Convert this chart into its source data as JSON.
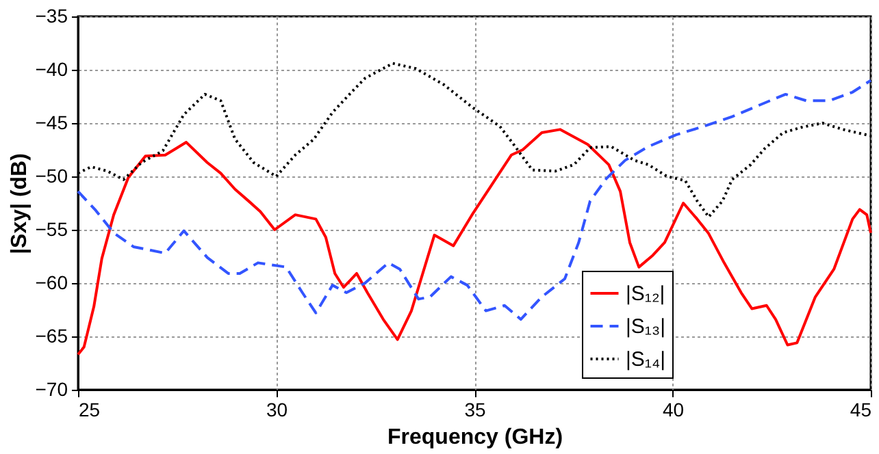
{
  "chart_data": {
    "type": "line",
    "xlabel": "Frequency (GHz)",
    "ylabel": "|Sxy| (dB)",
    "xlim": [
      25,
      45
    ],
    "ylim": [
      -70,
      -35
    ],
    "xticks": [
      25,
      30,
      35,
      40,
      45
    ],
    "yticks": [
      -70,
      -65,
      -60,
      -55,
      -50,
      -45,
      -40,
      -35
    ],
    "grid": true,
    "legend": "bottom right",
    "marker": "none",
    "series": [
      {
        "name": "|S₁₂|",
        "color": "#ff0000",
        "line_style": "solid",
        "x": [
          25,
          25.15,
          25.4,
          25.6,
          25.9,
          26.27,
          26.7,
          27.2,
          27.73,
          28.26,
          28.6,
          28.96,
          29.3,
          29.6,
          29.96,
          30.48,
          31.0,
          31.25,
          31.48,
          31.7,
          32.03,
          32.3,
          32.7,
          33.06,
          33.41,
          33.99,
          34.47,
          34.94,
          35.4,
          35.93,
          36.22,
          36.7,
          37.16,
          37.86,
          38.39,
          38.68,
          38.92,
          39.15,
          39.5,
          39.8,
          40.27,
          40.62,
          40.9,
          41.3,
          41.73,
          42.0,
          42.37,
          42.6,
          42.9,
          43.14,
          43.6,
          44.07,
          44.54,
          44.72,
          44.9,
          45
        ],
        "values": [
          -66.7,
          -66,
          -62.2,
          -57.7,
          -53.6,
          -50.1,
          -48.1,
          -48,
          -46.8,
          -48.7,
          -49.7,
          -51.2,
          -52.3,
          -53.3,
          -55,
          -53.6,
          -54,
          -55.7,
          -59.1,
          -60.4,
          -59.1,
          -60.9,
          -63.4,
          -65.3,
          -62.6,
          -55.5,
          -56.5,
          -53.6,
          -51,
          -48,
          -47.5,
          -45.9,
          -45.6,
          -47,
          -48.9,
          -51.4,
          -56.2,
          -58.5,
          -57.4,
          -56.2,
          -52.5,
          -54,
          -55.3,
          -58.1,
          -60.9,
          -62.4,
          -62.1,
          -63.4,
          -65.8,
          -65.6,
          -61.3,
          -58.7,
          -54,
          -53.1,
          -53.6,
          -55.3
        ]
      },
      {
        "name": "|S₁₃|",
        "color": "#3355ff",
        "line_style": "dashed",
        "x": [
          25,
          25.45,
          25.9,
          26.4,
          27.2,
          27.67,
          28.26,
          28.79,
          29.08,
          29.54,
          30.25,
          30.66,
          31.0,
          31.42,
          31.77,
          32.24,
          32.83,
          33.12,
          33.59,
          33.88,
          34.41,
          34.82,
          35.29,
          35.76,
          36.17,
          36.7,
          37.28,
          37.63,
          37.92,
          38.33,
          38.8,
          39.39,
          40.09,
          40.79,
          41.5,
          42.2,
          42.85,
          43.37,
          43.96,
          44.54,
          45
        ],
        "values": [
          -51.4,
          -53.2,
          -55.3,
          -56.6,
          -57.2,
          -55.1,
          -57.6,
          -59.1,
          -59.1,
          -58.1,
          -58.5,
          -60.9,
          -62.8,
          -60.2,
          -60.9,
          -60,
          -58.1,
          -58.7,
          -61.5,
          -61.3,
          -59.4,
          -60.2,
          -62.6,
          -62.1,
          -63.4,
          -61.3,
          -59.6,
          -56.2,
          -52.3,
          -50.2,
          -48.5,
          -47.2,
          -46.1,
          -45.3,
          -44.4,
          -43.3,
          -42.3,
          -42.9,
          -42.9,
          -42.1,
          -41
        ]
      },
      {
        "name": "|S₁₄|",
        "color": "#000000",
        "line_style": "dotted",
        "x": [
          25,
          25.33,
          25.74,
          26.15,
          26.6,
          27.14,
          27.67,
          28.2,
          28.6,
          28.96,
          29.43,
          30.0,
          30.48,
          30.95,
          31.42,
          31.9,
          32.24,
          32.94,
          33.53,
          34.23,
          34.94,
          35.64,
          35.99,
          36.46,
          37.05,
          37.51,
          37.92,
          38.45,
          39.04,
          39.39,
          39.86,
          40.32,
          40.62,
          40.91,
          41.26,
          41.5,
          41.97,
          42.32,
          42.79,
          43.25,
          43.78,
          44.3,
          45
        ],
        "values": [
          -49.7,
          -49.1,
          -49.5,
          -50.3,
          -48.7,
          -47.6,
          -44.2,
          -42.3,
          -42.9,
          -46.5,
          -48.7,
          -50,
          -48,
          -46.5,
          -44,
          -42.1,
          -40.8,
          -39.4,
          -39.9,
          -41.4,
          -43.5,
          -45.3,
          -47,
          -49.4,
          -49.5,
          -48.9,
          -47.3,
          -47.2,
          -48.5,
          -48.9,
          -50,
          -50.4,
          -52.3,
          -53.8,
          -52.3,
          -50.3,
          -48.9,
          -47.4,
          -45.9,
          -45.4,
          -45,
          -45.6,
          -46.2
        ]
      }
    ]
  }
}
